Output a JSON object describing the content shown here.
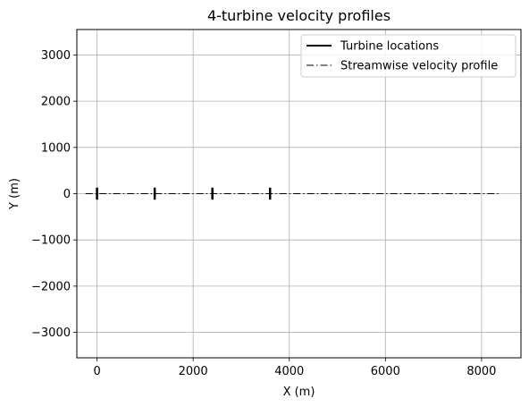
{
  "chart_data": {
    "type": "line",
    "title": "4-turbine velocity profiles",
    "xlabel": "X (m)",
    "ylabel": "Y (m)",
    "xlim": [
      -420,
      8820
    ],
    "ylim": [
      -3550,
      3550
    ],
    "grid": true,
    "legend_position": "top-right",
    "x_ticks": [
      0,
      2000,
      4000,
      6000,
      8000
    ],
    "x_tick_labels": [
      "0",
      "2000",
      "4000",
      "6000",
      "8000"
    ],
    "y_ticks": [
      3000,
      2000,
      1000,
      0,
      -1000,
      -2000,
      -3000
    ],
    "y_tick_labels": [
      "3000",
      "2000",
      "1000",
      "0",
      "−1000",
      "−2000",
      "−3000"
    ],
    "series": [
      {
        "name": "Turbine locations",
        "style": "solid",
        "color": "#000000",
        "segments": [
          {
            "x": 0,
            "y": [
              -130,
              130
            ]
          },
          {
            "x": 1200,
            "y": [
              -130,
              130
            ]
          },
          {
            "x": 2400,
            "y": [
              -130,
              130
            ]
          },
          {
            "x": 3600,
            "y": [
              -130,
              130
            ]
          }
        ]
      },
      {
        "name": "Streamwise velocity profile",
        "style": "dashdot",
        "color": "#000000",
        "x": [
          -240,
          8400
        ],
        "y": [
          0,
          0
        ]
      }
    ]
  }
}
